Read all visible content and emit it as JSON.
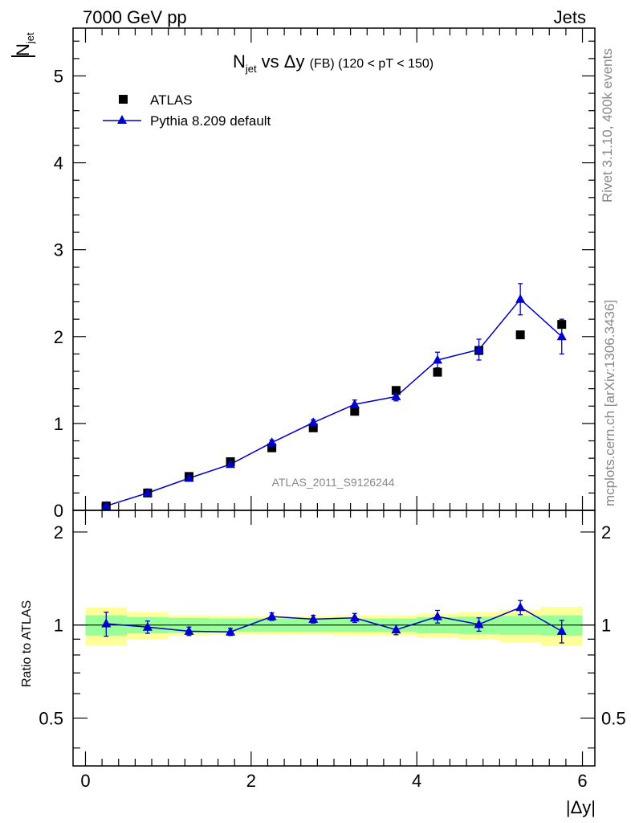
{
  "header": {
    "left": "7000 GeV pp",
    "right": "Jets"
  },
  "side_labels": {
    "rivet": "Rivet 3.1.10,  400k events",
    "mcplots": "mcplots.cern.ch [arXiv:1306.3436]"
  },
  "watermark": "ATLAS_2011_S9126244",
  "colors": {
    "mc": "#0000cc",
    "data": "#000000",
    "band_inner": "#99ff99",
    "band_outer": "#ffff99"
  },
  "chart_data": [
    {
      "type": "scatter",
      "title": {
        "main": "N",
        "main_sub": "jet",
        "mid": " vs Δy ",
        "tag": "(FB)",
        "range": " (120 < pT < 150)"
      },
      "ylabel": {
        "num": "N",
        "num_sub": "jet"
      },
      "xlim": [
        -0.15,
        6.15
      ],
      "ylim": [
        0,
        5.55
      ],
      "yticks": [
        0,
        1,
        2,
        3,
        4,
        5
      ],
      "ytick_labels": [
        "0",
        "1",
        "2",
        "3",
        "4",
        "5"
      ],
      "legend": {
        "position": "top-left",
        "entries": [
          "ATLAS",
          "Pythia 8.209 default"
        ]
      },
      "series": [
        {
          "name": "ATLAS",
          "marker": "square",
          "x": [
            0.25,
            0.75,
            1.25,
            1.75,
            2.25,
            2.75,
            3.25,
            3.75,
            4.25,
            4.75,
            5.25,
            5.75
          ],
          "y": [
            0.05,
            0.2,
            0.39,
            0.56,
            0.72,
            0.95,
            1.14,
            1.38,
            1.59,
            1.84,
            2.02,
            2.14
          ]
        },
        {
          "name": "Pythia 8.209 default",
          "marker": "triangle",
          "x": [
            0.25,
            0.75,
            1.25,
            1.75,
            2.25,
            2.75,
            3.25,
            3.75,
            4.25,
            4.75,
            5.25,
            5.75
          ],
          "y": [
            0.05,
            0.2,
            0.37,
            0.53,
            0.78,
            1.01,
            1.22,
            1.31,
            1.73,
            1.85,
            2.43,
            2.0
          ],
          "yerr": [
            0.005,
            0.01,
            0.015,
            0.02,
            0.03,
            0.035,
            0.05,
            0.05,
            0.09,
            0.12,
            0.18,
            0.2
          ]
        }
      ]
    },
    {
      "type": "scatter",
      "ylabel": "Ratio to ATLAS",
      "xlabel": "|Δy|",
      "xlim": [
        -0.15,
        6.15
      ],
      "ylim": [
        0.35,
        2.35
      ],
      "yticks": [
        0.5,
        1,
        2
      ],
      "ytick_labels": [
        "0.5",
        "1",
        "2"
      ],
      "xticks": [
        0,
        2,
        4,
        6
      ],
      "xtick_labels": [
        "0",
        "2",
        "4",
        "6"
      ],
      "bands": {
        "edges": [
          0,
          0.5,
          1,
          1.5,
          2,
          2.5,
          3,
          3.5,
          4,
          4.5,
          5,
          5.5,
          6
        ],
        "inner": [
          0.075,
          0.06,
          0.055,
          0.05,
          0.05,
          0.05,
          0.05,
          0.05,
          0.06,
          0.065,
          0.07,
          0.075
        ],
        "outer": [
          0.14,
          0.1,
          0.075,
          0.07,
          0.07,
          0.07,
          0.075,
          0.075,
          0.09,
          0.1,
          0.12,
          0.145
        ]
      },
      "series": [
        {
          "name": "Pythia 8.209 default",
          "marker": "triangle",
          "x": [
            0.25,
            0.75,
            1.25,
            1.75,
            2.25,
            2.75,
            3.25,
            3.75,
            4.25,
            4.75,
            5.25,
            5.75
          ],
          "y": [
            1.01,
            0.985,
            0.955,
            0.95,
            1.065,
            1.045,
            1.055,
            0.965,
            1.065,
            1.005,
            1.14,
            0.955
          ],
          "yerr": [
            0.09,
            0.045,
            0.03,
            0.025,
            0.03,
            0.03,
            0.035,
            0.035,
            0.05,
            0.05,
            0.06,
            0.08
          ]
        }
      ]
    }
  ]
}
